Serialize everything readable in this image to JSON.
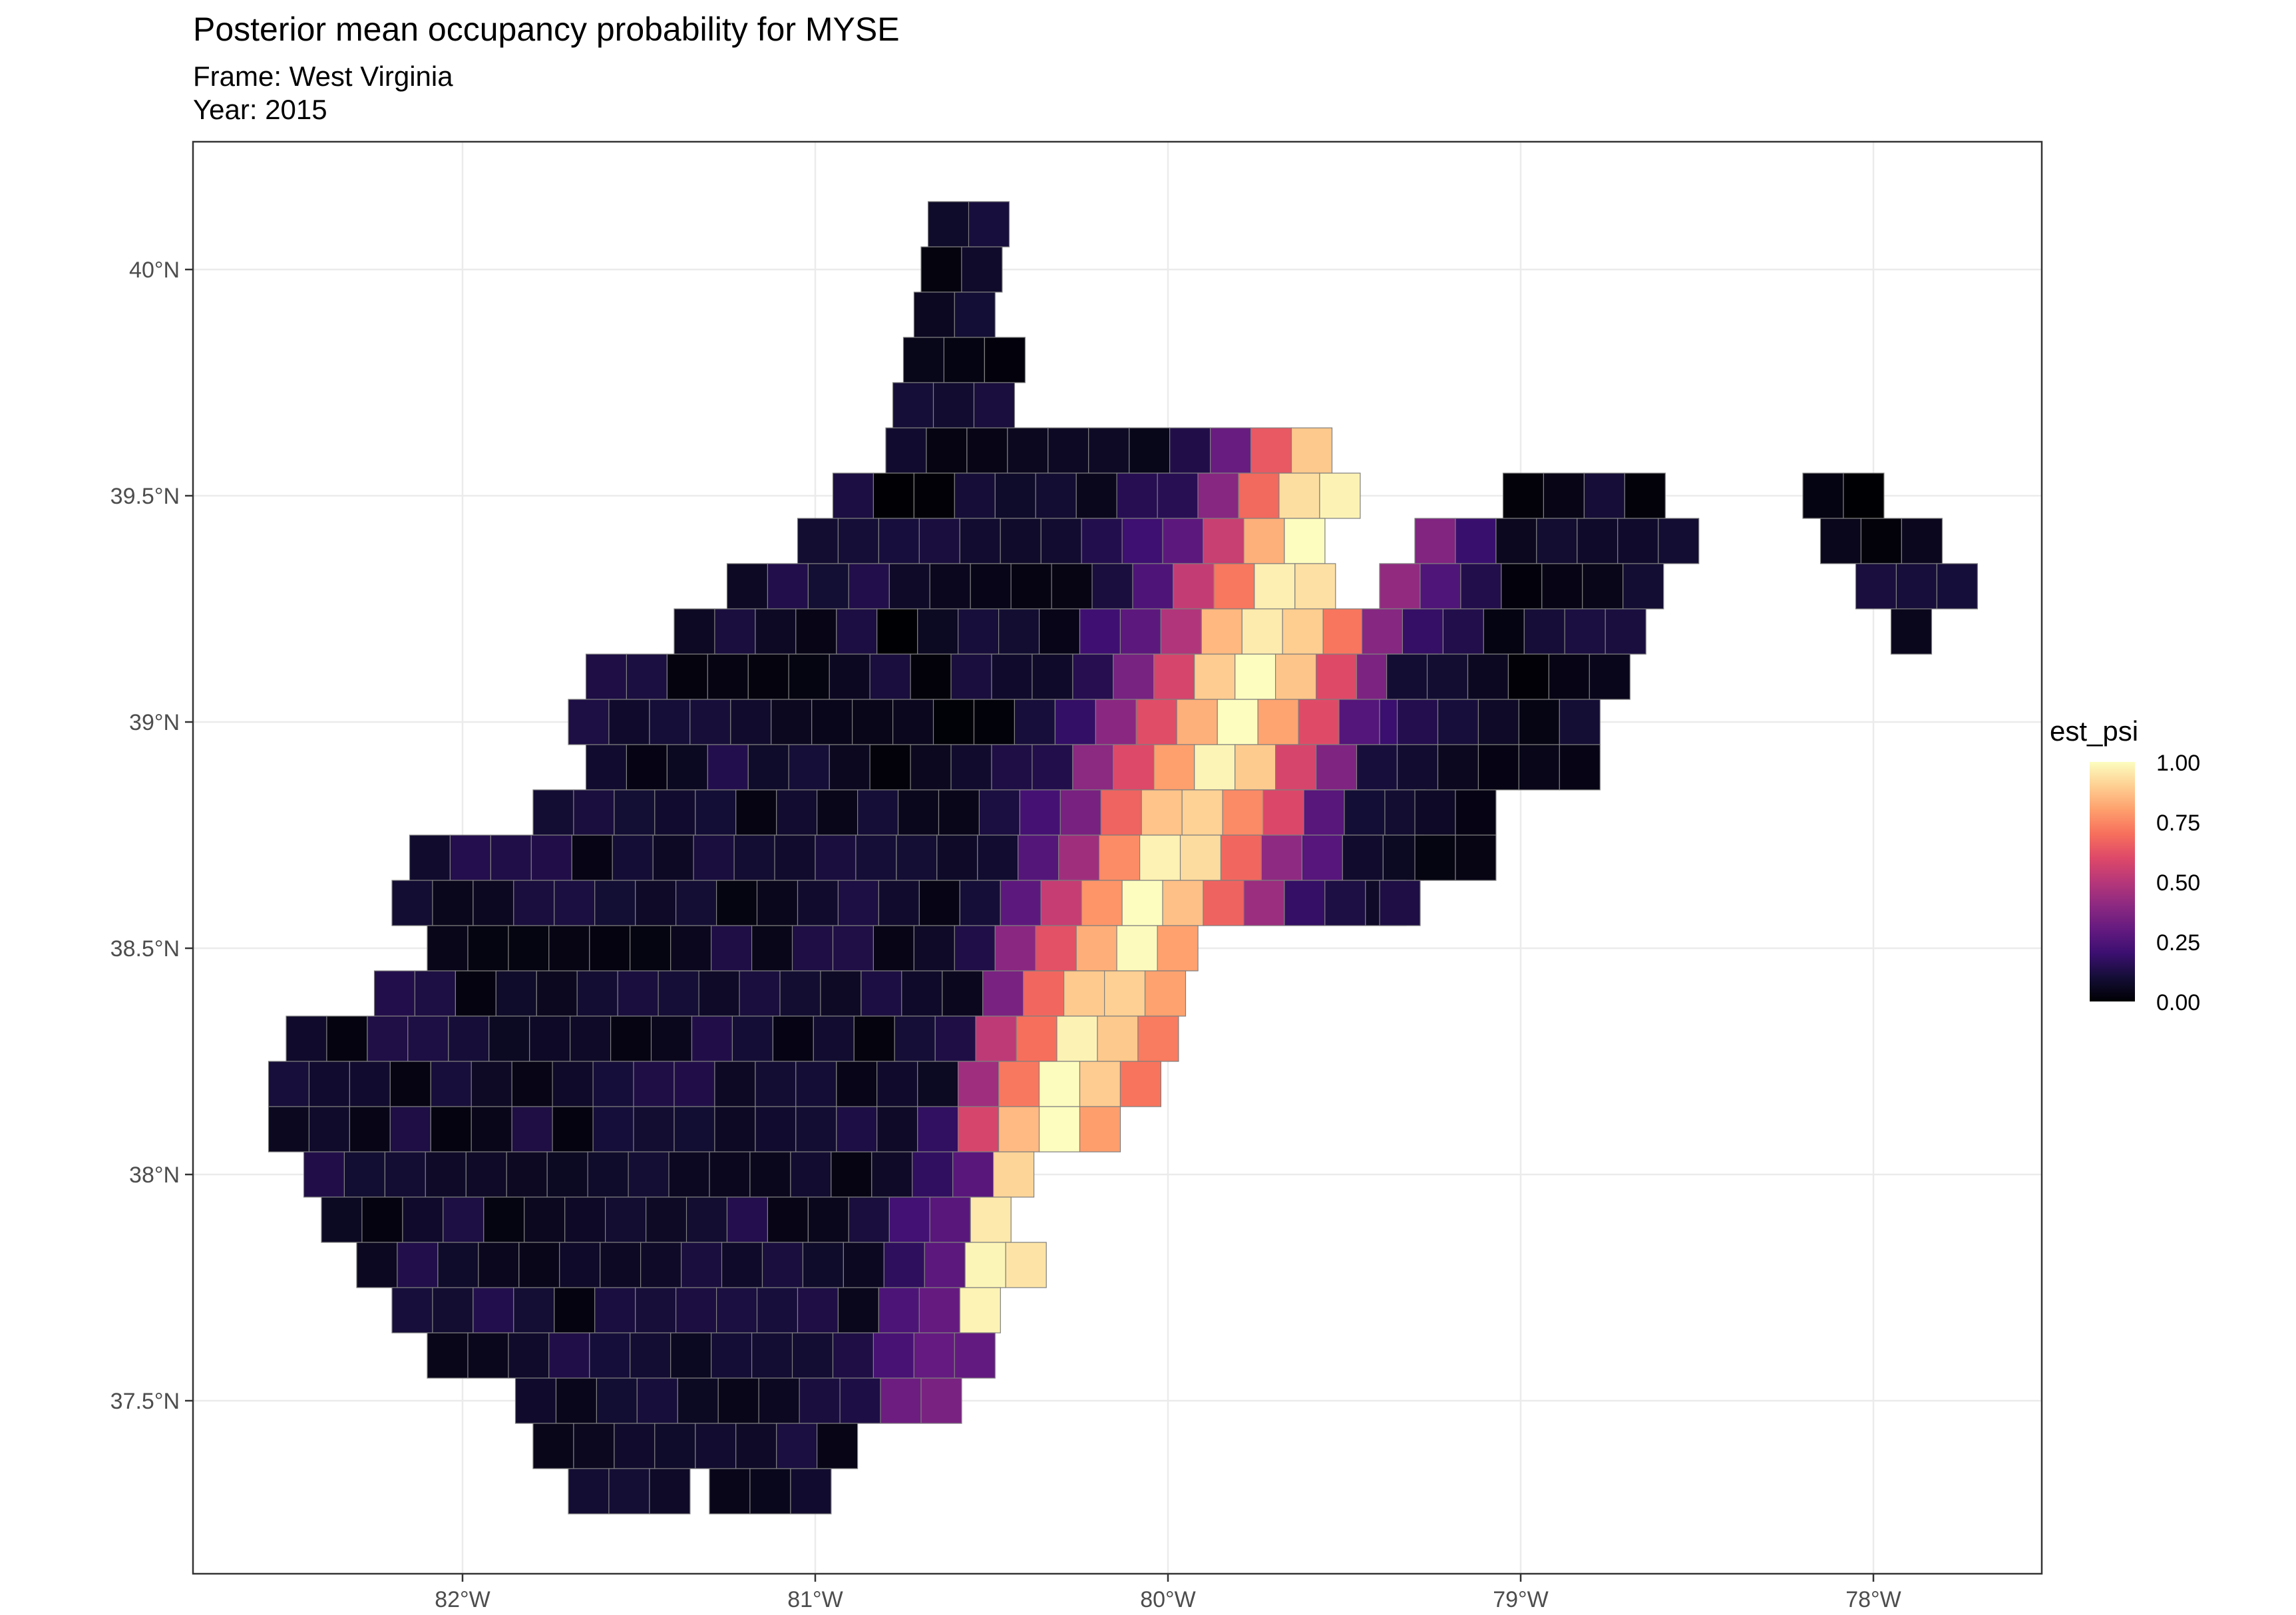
{
  "title": "Posterior mean occupancy probability for MYSE",
  "subtitle_frame": "Frame: West Virginia",
  "subtitle_year": "Year: 2015",
  "legend": {
    "title": "est_psi",
    "ticks": [
      "1.00",
      "0.75",
      "0.50",
      "0.25",
      "0.00"
    ],
    "colorscale": "magma",
    "range": [
      0,
      1
    ]
  },
  "axes": {
    "x_ticks": [
      "82°W",
      "81°W",
      "80°W",
      "79°W",
      "78°W"
    ],
    "y_ticks": [
      "40°N",
      "39.5°N",
      "39°N",
      "38.5°N",
      "38°N",
      "37.5°N"
    ],
    "grid": true
  },
  "colors": {
    "panel_border": "#333333",
    "grid": "#ebebeb",
    "cell_border": "#7f7f7f"
  }
}
